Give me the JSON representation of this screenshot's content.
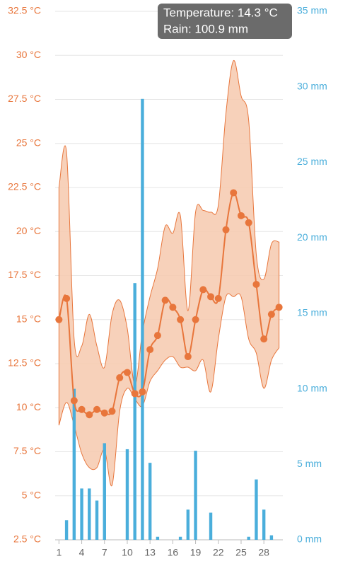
{
  "chart_data": {
    "type": "line",
    "x": [
      1,
      2,
      3,
      4,
      5,
      6,
      7,
      8,
      9,
      10,
      11,
      12,
      13,
      14,
      15,
      16,
      17,
      18,
      19,
      20,
      21,
      22,
      23,
      24,
      25,
      26,
      27,
      28,
      29,
      30
    ],
    "xlim": [
      0.5,
      30.5
    ],
    "xticks": [
      1,
      4,
      7,
      10,
      13,
      16,
      19,
      22,
      25,
      28
    ],
    "ylim": [
      2.5,
      32.5
    ],
    "yticks": [
      {
        "value": 2.5,
        "label": "2.5 °C"
      },
      {
        "value": 5,
        "label": "5 °C"
      },
      {
        "value": 7.5,
        "label": "7.5 °C"
      },
      {
        "value": 10,
        "label": "10 °C"
      },
      {
        "value": 12.5,
        "label": "12.5 °C"
      },
      {
        "value": 15,
        "label": "15 °C"
      },
      {
        "value": 17.5,
        "label": "17.5 °C"
      },
      {
        "value": 20,
        "label": "20 °C"
      },
      {
        "value": 22.5,
        "label": "22.5 °C"
      },
      {
        "value": 25,
        "label": "25 °C"
      },
      {
        "value": 27.5,
        "label": "27.5 °C"
      },
      {
        "value": 30,
        "label": "30 °C"
      },
      {
        "value": 32.5,
        "label": "32.5 °C"
      }
    ],
    "y2lim": [
      0,
      35
    ],
    "y2ticks": [
      {
        "value": 0,
        "label": "0 mm"
      },
      {
        "value": 5,
        "label": "5 mm"
      },
      {
        "value": 10,
        "label": "10 mm"
      },
      {
        "value": 15,
        "label": "15 mm"
      },
      {
        "value": 20,
        "label": "20 mm"
      },
      {
        "value": 25,
        "label": "25 mm"
      },
      {
        "value": 30,
        "label": "30 mm"
      },
      {
        "value": 35,
        "label": "35 mm"
      }
    ],
    "grid": true,
    "series": [
      {
        "type": "range",
        "color": "#f6c9ae",
        "high": [
          22.5,
          24.5,
          13.9,
          13.5,
          15.3,
          13.5,
          12.3,
          15.3,
          16.1,
          14.5,
          11.3,
          14.3,
          16.3,
          17.9,
          20.3,
          19.9,
          20.9,
          15.5,
          21.1,
          21.2,
          21.1,
          21.5,
          26.7,
          29.7,
          27.7,
          26.3,
          18.7,
          17.3,
          19.3,
          19.4
        ],
        "low": [
          9.0,
          10.3,
          9.0,
          7.4,
          6.6,
          6.6,
          7.6,
          5.6,
          9.8,
          11.1,
          10.5,
          10.1,
          11.5,
          12.1,
          12.7,
          12.9,
          12.3,
          12.3,
          12.1,
          12.7,
          10.9,
          13.9,
          16.3,
          16.3,
          16.3,
          13.9,
          13.1,
          11.1,
          12.7,
          13.4
        ]
      },
      {
        "type": "line",
        "color": "#e8763c",
        "values": [
          15.0,
          16.2,
          10.4,
          9.9,
          9.6,
          9.9,
          9.7,
          9.8,
          11.7,
          12.0,
          10.8,
          10.9,
          13.3,
          14.1,
          16.1,
          15.7,
          15.0,
          12.9,
          15.0,
          16.7,
          16.3,
          16.2,
          20.1,
          22.2,
          20.9,
          20.5,
          17.0,
          13.9,
          15.3,
          15.7
        ]
      },
      {
        "type": "bar",
        "axis": "y2",
        "color": "#4aaedb",
        "values": [
          0,
          1.3,
          10.0,
          3.4,
          3.4,
          2.6,
          6.4,
          0,
          0,
          6.0,
          17.0,
          29.2,
          5.1,
          0.2,
          0,
          0,
          0.2,
          2.0,
          5.9,
          0,
          1.8,
          0,
          0,
          0,
          0,
          0.2,
          4.0,
          2.0,
          0.3,
          0
        ]
      }
    ],
    "tooltip": [
      "Temperature: 14.3 °C",
      "Rain: 100.9 mm"
    ]
  }
}
